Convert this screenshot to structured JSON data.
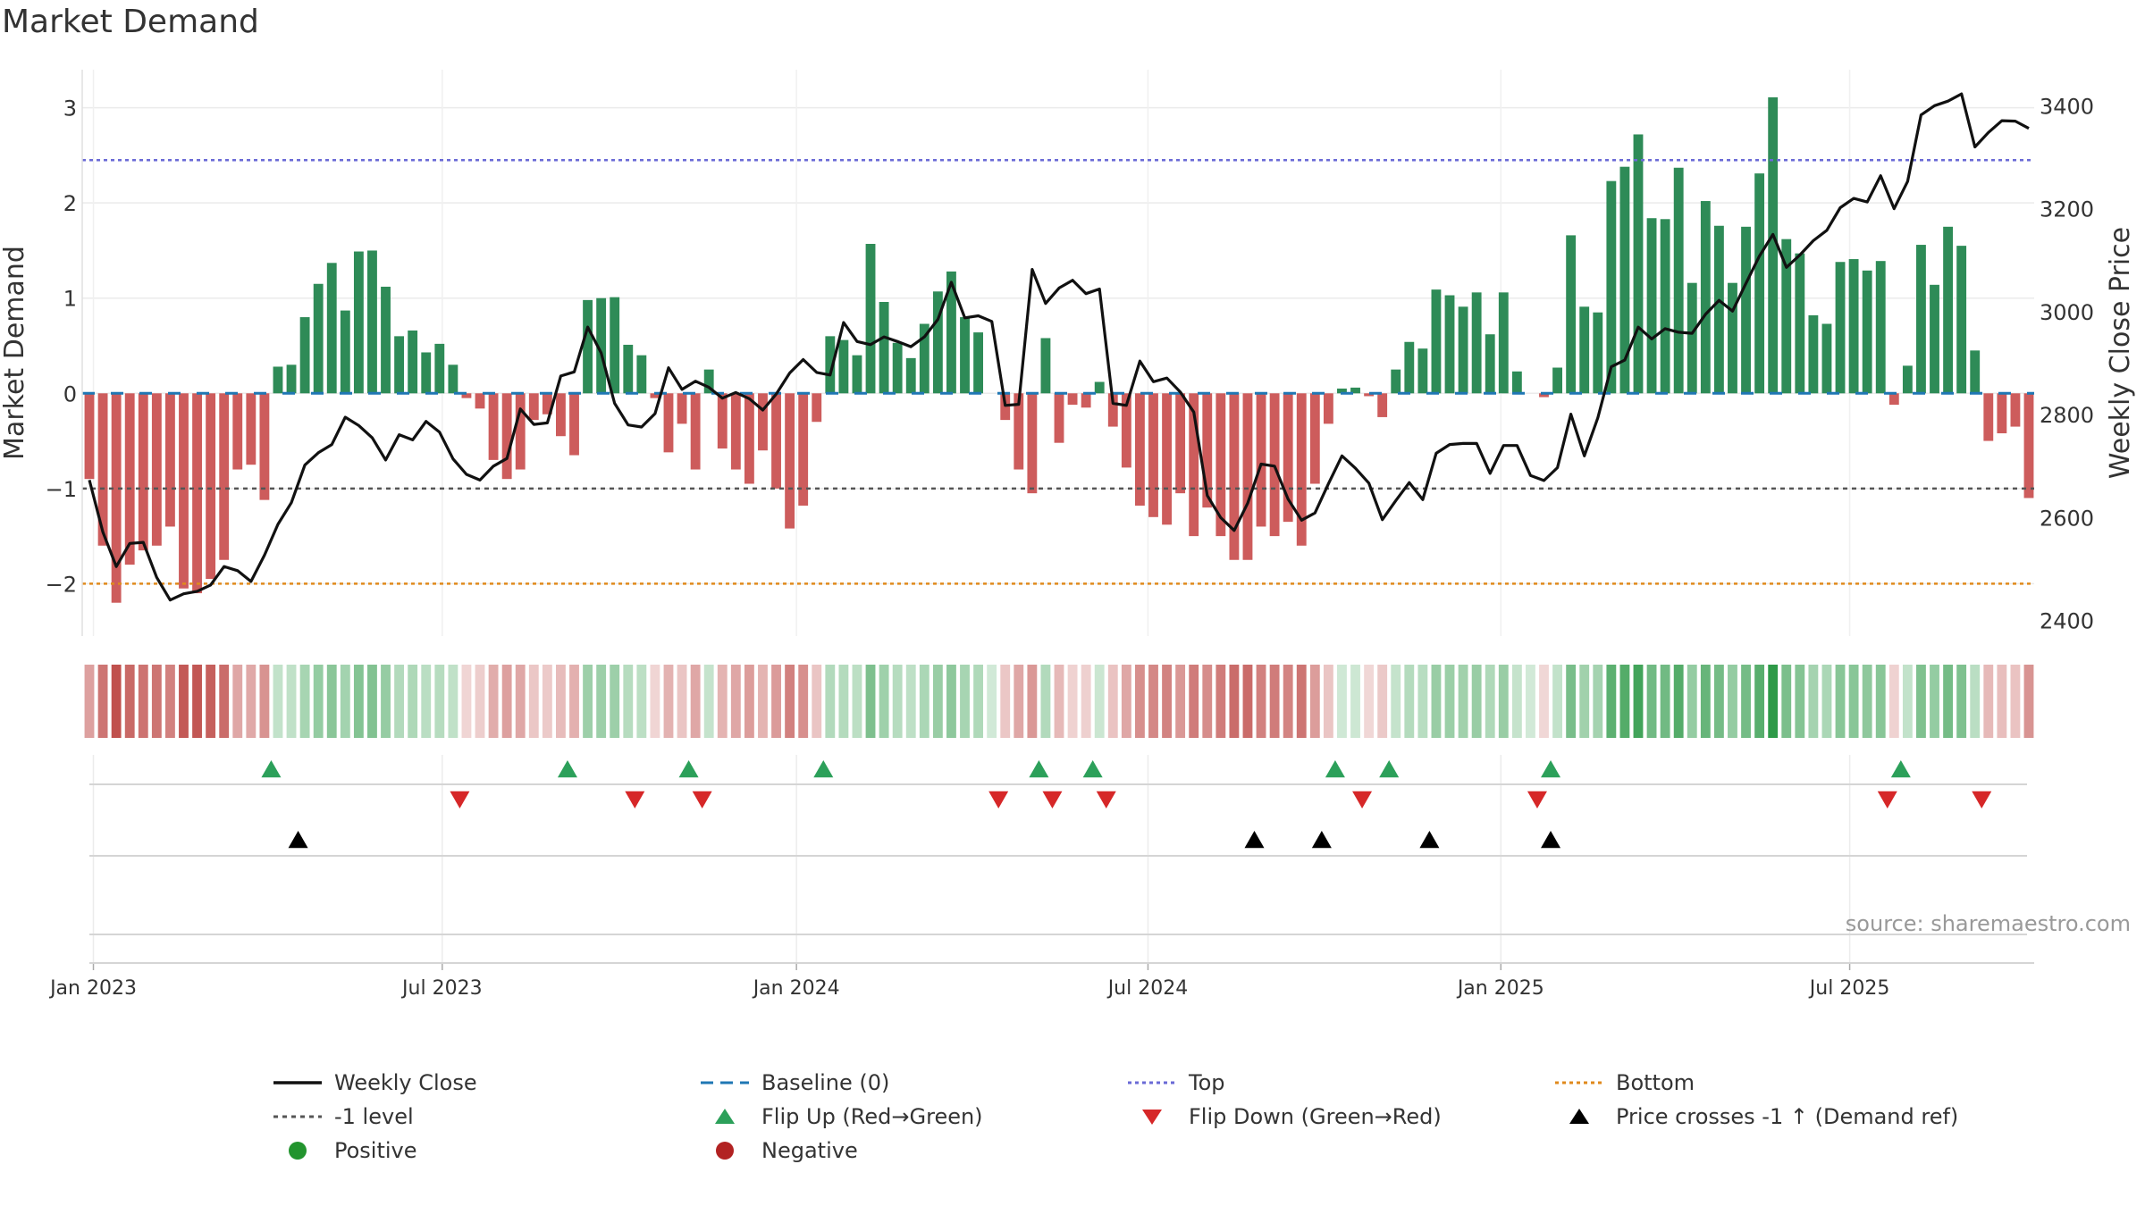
{
  "title": "Market Demand",
  "source": "source: sharemaestro.com",
  "colors": {
    "positive": "#2e8b57",
    "negative": "#cd5c5c",
    "price": "#111111",
    "baseline": "#1f77b4",
    "top": "#6a6ad6",
    "bottom": "#e08a1c",
    "minus1": "#555555",
    "flip_up": "#2ca05a",
    "flip_down": "#d62728",
    "cross": "#000000"
  },
  "legend": [
    {
      "key": "weekly_close",
      "label": "Weekly Close"
    },
    {
      "key": "baseline",
      "label": "Baseline (0)"
    },
    {
      "key": "top",
      "label": "Top"
    },
    {
      "key": "bottom",
      "label": "Bottom"
    },
    {
      "key": "minus1",
      "label": "-1 level"
    },
    {
      "key": "flip_up",
      "label": "Flip Up (Red→Green)"
    },
    {
      "key": "flip_down",
      "label": "Flip Down (Green→Red)"
    },
    {
      "key": "cross",
      "label": "Price crosses -1 ↑ (Demand ref)"
    },
    {
      "key": "positive",
      "label": "Positive"
    },
    {
      "key": "negative",
      "label": "Negative"
    }
  ],
  "chart_data": {
    "type": "bar",
    "title": "Market Demand",
    "ylabel_left": "Market Demand",
    "ylabel_right": "Weekly Close Price",
    "ylim_left": [
      -2.55,
      3.4
    ],
    "ylim_right": [
      2370,
      3470
    ],
    "left_ticks": [
      3,
      2,
      1,
      0,
      -1,
      -2
    ],
    "left_tick_labels": [
      "3",
      "2",
      "1",
      "0",
      "−1",
      "−2"
    ],
    "right_ticks": [
      3400,
      3200,
      3000,
      2800,
      2600,
      2400
    ],
    "x_tick_weeks": [
      0.3,
      26.2,
      52.5,
      78.6,
      104.8,
      130.7
    ],
    "x_tick_labels": [
      "Jan 2023",
      "Jul 2023",
      "Jan 2024",
      "Jul 2024",
      "Jan 2025",
      "Jul 2025"
    ],
    "reference_lines": {
      "baseline": 0,
      "top": 2.45,
      "minus1": -1,
      "bottom": -2
    },
    "market_demand": [
      -0.9,
      -1.6,
      -2.2,
      -1.8,
      -1.65,
      -1.6,
      -1.4,
      -2.05,
      -2.1,
      -1.95,
      -1.75,
      -0.8,
      -0.75,
      -1.12,
      0.28,
      0.3,
      0.8,
      1.15,
      1.37,
      0.87,
      1.49,
      1.5,
      1.12,
      0.6,
      0.66,
      0.43,
      0.52,
      0.3,
      -0.05,
      -0.16,
      -0.7,
      -0.9,
      -0.8,
      -0.28,
      -0.22,
      -0.45,
      -0.65,
      0.98,
      1.0,
      1.01,
      0.51,
      0.4,
      -0.05,
      -0.62,
      -0.32,
      -0.8,
      0.25,
      -0.58,
      -0.8,
      -0.95,
      -0.6,
      -1.0,
      -1.42,
      -1.18,
      -0.3,
      0.6,
      0.56,
      0.4,
      1.57,
      0.96,
      0.53,
      0.37,
      0.73,
      1.07,
      1.28,
      0.8,
      0.64,
      0.0,
      -0.28,
      -0.8,
      -1.05,
      0.58,
      -0.52,
      -0.12,
      -0.15,
      0.12,
      -0.35,
      -0.78,
      -1.18,
      -1.3,
      -1.38,
      -1.05,
      -1.5,
      -1.2,
      -1.5,
      -1.75,
      -1.75,
      -1.4,
      -1.5,
      -1.35,
      -1.6,
      -0.95,
      -0.32,
      0.05,
      0.06,
      -0.03,
      -0.25,
      0.25,
      0.54,
      0.47,
      1.09,
      1.03,
      0.91,
      1.06,
      0.62,
      1.06,
      0.23,
      0.0,
      -0.04,
      0.27,
      1.66,
      0.91,
      0.85,
      2.23,
      2.38,
      2.72,
      1.84,
      1.83,
      2.37,
      1.16,
      2.02,
      1.76,
      1.16,
      1.75,
      2.31,
      3.11,
      1.62,
      1.47,
      0.82,
      0.73,
      1.38,
      1.41,
      1.29,
      1.39,
      -0.12,
      0.29,
      1.56,
      1.14,
      1.75,
      1.55,
      0.45,
      -0.5,
      -0.42,
      -0.35,
      -1.1
    ],
    "weekly_close": [
      2673,
      2572,
      2505,
      2550,
      2552,
      2484,
      2440,
      2452,
      2457,
      2469,
      2505,
      2497,
      2476,
      2527,
      2587,
      2629,
      2702,
      2726,
      2742,
      2795,
      2779,
      2755,
      2712,
      2761,
      2751,
      2787,
      2766,
      2714,
      2684,
      2673,
      2700,
      2715,
      2811,
      2781,
      2784,
      2875,
      2883,
      2970,
      2920,
      2822,
      2780,
      2776,
      2802,
      2891,
      2849,
      2865,
      2853,
      2832,
      2843,
      2831,
      2809,
      2840,
      2881,
      2907,
      2882,
      2877,
      2979,
      2942,
      2936,
      2951,
      2942,
      2932,
      2951,
      2985,
      3057,
      2988,
      2992,
      2981,
      2818,
      2820,
      3082,
      3016,
      3046,
      3061,
      3035,
      3044,
      2822,
      2818,
      2904,
      2864,
      2871,
      2844,
      2805,
      2643,
      2600,
      2575,
      2628,
      2704,
      2700,
      2636,
      2595,
      2609,
      2666,
      2720,
      2696,
      2667,
      2596,
      2633,
      2668,
      2635,
      2725,
      2742,
      2744,
      2744,
      2686,
      2740,
      2740,
      2682,
      2672,
      2697,
      2801,
      2720,
      2794,
      2893,
      2906,
      2970,
      2947,
      2967,
      2960,
      2958,
      2995,
      3022,
      3001,
      3055,
      3108,
      3150,
      3086,
      3110,
      3138,
      3158,
      3202,
      3220,
      3213,
      3264,
      3200,
      3253,
      3382,
      3400,
      3409,
      3423,
      3320,
      3348,
      3371,
      3370,
      3356
    ],
    "flip_up_weeks": [
      13.5,
      35.5,
      44.5,
      54.5,
      70.5,
      74.5,
      92.5,
      96.5,
      108.5,
      134.5
    ],
    "flip_down_weeks": [
      27.5,
      40.5,
      45.5,
      67.5,
      71.5,
      75.5,
      94.5,
      107.5,
      133.5,
      140.5
    ],
    "price_cross_weeks": [
      15.5,
      86.5,
      91.5,
      99.5,
      108.5
    ]
  }
}
